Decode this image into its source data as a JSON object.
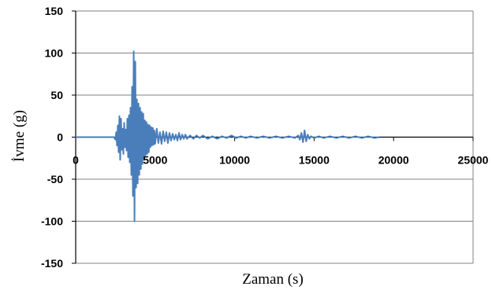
{
  "chart_data": {
    "type": "line",
    "title": "",
    "xlabel": "Zaman (s)",
    "ylabel": "İvme (g)",
    "xlim": [
      0,
      25000
    ],
    "ylim": [
      -150,
      150
    ],
    "x_ticks": [
      0,
      5000,
      10000,
      15000,
      20000,
      25000
    ],
    "y_ticks": [
      150,
      100,
      50,
      0,
      -50,
      -100,
      -150
    ],
    "x_tick_labels": [
      "0",
      "5000",
      "10000",
      "15000",
      "20000",
      "25000"
    ],
    "y_tick_labels": [
      "150",
      "100",
      "50",
      "0",
      "-50",
      "-100",
      "-150"
    ],
    "grid": "horizontal",
    "legend": "none",
    "colors": {
      "series": "#4a7ebb",
      "grid": "#808080",
      "axis": "#000000"
    },
    "series": [
      {
        "name": "",
        "x": [
          0,
          2400,
          2500,
          2550,
          2600,
          2650,
          2700,
          2750,
          2800,
          2850,
          2900,
          2950,
          3000,
          3050,
          3100,
          3150,
          3200,
          3250,
          3300,
          3350,
          3400,
          3450,
          3500,
          3550,
          3600,
          3650,
          3700,
          3750,
          3800,
          3850,
          3900,
          3950,
          4000,
          4050,
          4100,
          4150,
          4200,
          4250,
          4300,
          4350,
          4400,
          4450,
          4500,
          4550,
          4600,
          4650,
          4700,
          4750,
          4800,
          4850,
          4900,
          4950,
          5000,
          5100,
          5200,
          5300,
          5400,
          5500,
          5600,
          5700,
          5800,
          5900,
          6000,
          6100,
          6200,
          6300,
          6400,
          6500,
          6600,
          6700,
          6800,
          6900,
          7000,
          7200,
          7400,
          7600,
          7800,
          8000,
          8300,
          8600,
          8900,
          9200,
          9500,
          9800,
          10100,
          10400,
          10700,
          11000,
          11400,
          11800,
          12200,
          12600,
          13000,
          13400,
          13800,
          14000,
          14100,
          14200,
          14300,
          14400,
          14500,
          14600,
          14700,
          14800,
          15000,
          15300,
          15600,
          16000,
          16400,
          16800,
          17200,
          17600,
          18000,
          18400,
          18800,
          19100
        ],
        "y": [
          0,
          0,
          -3,
          6,
          -10,
          14,
          -18,
          25,
          -27,
          22,
          -15,
          10,
          -20,
          17,
          -12,
          9,
          -16,
          22,
          -24,
          26,
          -30,
          35,
          -45,
          60,
          -70,
          102,
          -100,
          90,
          -60,
          45,
          -55,
          40,
          -45,
          35,
          -38,
          30,
          -32,
          28,
          -25,
          20,
          -22,
          18,
          -20,
          15,
          -18,
          14,
          -12,
          12,
          -10,
          11,
          -9,
          8,
          -8,
          10,
          -7,
          6,
          -8,
          7,
          -5,
          6,
          -7,
          5,
          -4,
          4,
          -3,
          3,
          -4,
          5,
          -3,
          3,
          -2,
          3,
          -2,
          2,
          -2,
          2,
          -1,
          2,
          -2,
          1,
          -2,
          1,
          -1,
          2,
          -1,
          1,
          -1,
          1,
          -1,
          1,
          -1,
          1,
          -1,
          1,
          -1,
          2,
          -3,
          5,
          -6,
          8,
          -5,
          3,
          -2,
          1,
          -1,
          1,
          -1,
          1,
          -1,
          1,
          -1,
          1,
          -1,
          1,
          -1,
          0
        ]
      }
    ]
  }
}
